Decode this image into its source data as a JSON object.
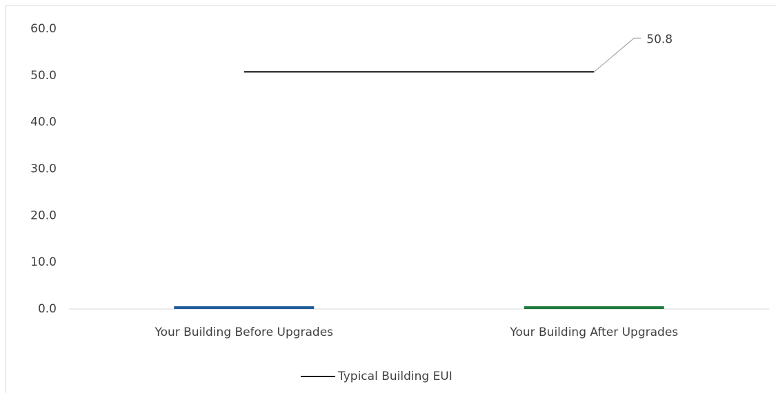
{
  "chart_data": {
    "type": "bar",
    "categories": [
      "Your Building Before Upgrades",
      "Your Building After Upgrades"
    ],
    "series": [
      {
        "type": "bar",
        "colors": [
          "#1f5c99",
          "#1e7a3c"
        ],
        "values": [
          0.6,
          0.6
        ]
      },
      {
        "type": "line",
        "name": "Typical Building EUI",
        "color": "#000000",
        "values": [
          50.8,
          50.8
        ],
        "data_labels": [
          false,
          true
        ]
      }
    ],
    "ylim": [
      0,
      60
    ],
    "yticks": [
      {
        "value": 0,
        "label": "0.0"
      },
      {
        "value": 10,
        "label": "10.0"
      },
      {
        "value": 20,
        "label": "20.0"
      },
      {
        "value": 30,
        "label": "30.0"
      },
      {
        "value": 40,
        "label": "40.0"
      },
      {
        "value": 50,
        "label": "50.0"
      },
      {
        "value": 60,
        "label": "60.0"
      }
    ],
    "grid": false,
    "legend": "bottom"
  }
}
